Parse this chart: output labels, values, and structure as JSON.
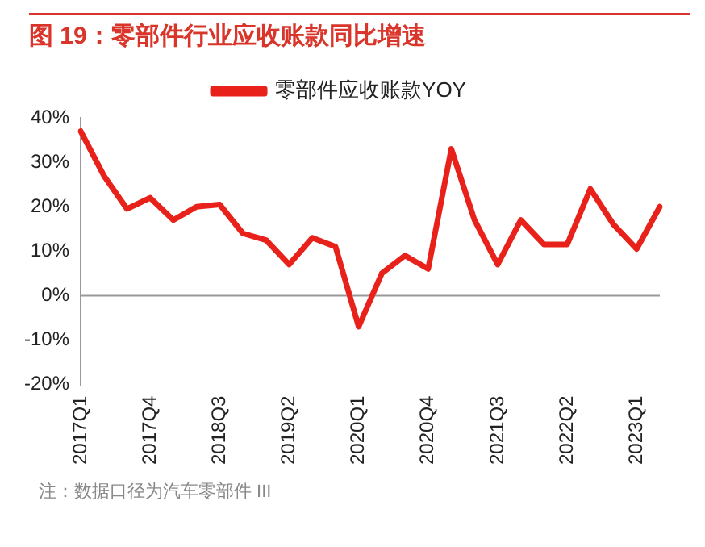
{
  "chart_data": {
    "type": "line",
    "title": "图 19：零部件行业应收账款同比增速",
    "categories": [
      "2017Q1",
      null,
      null,
      "2017Q4",
      null,
      null,
      "2018Q3",
      null,
      null,
      "2019Q2",
      null,
      null,
      "2020Q1",
      null,
      null,
      "2020Q4",
      null,
      null,
      "2021Q3",
      null,
      null,
      "2022Q2",
      null,
      null,
      "2023Q1",
      null
    ],
    "series": [
      {
        "name": "零部件应收账款YOY",
        "color": "#e8221b",
        "values": [
          37,
          27,
          19.5,
          22,
          17,
          20,
          20.5,
          14,
          12.5,
          7,
          13,
          11,
          -7,
          5,
          9,
          6,
          33,
          17,
          7,
          17,
          11.5,
          11.5,
          24,
          16,
          10.5,
          20
        ]
      }
    ],
    "ylim": [
      -20,
      40
    ],
    "yticks": [
      {
        "value": -20,
        "label": "-20%"
      },
      {
        "value": -10,
        "label": "-10%"
      },
      {
        "value": 0,
        "label": "0%"
      },
      {
        "value": 10,
        "label": "10%"
      },
      {
        "value": 20,
        "label": "20%"
      },
      {
        "value": 30,
        "label": "30%"
      },
      {
        "value": 40,
        "label": "40%"
      }
    ],
    "ref_lines": [
      {
        "axis": "y",
        "value": 0,
        "color": "#999999"
      }
    ],
    "grid": false,
    "legend": "top",
    "marker": "none",
    "line_style": "solid",
    "annotations": [
      "注：数据口径为汽车零部件 III"
    ]
  }
}
